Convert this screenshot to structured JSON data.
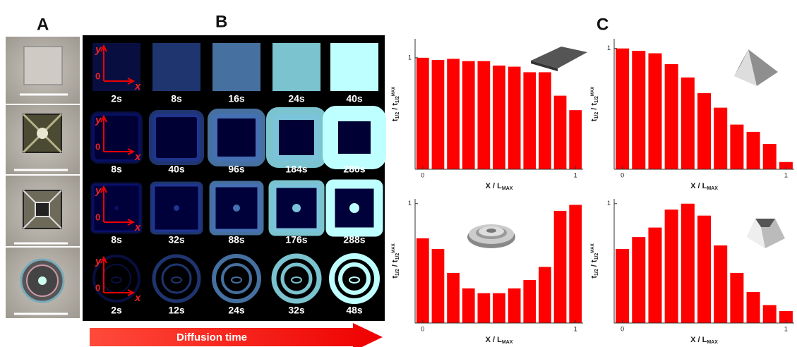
{
  "panel_labels": [
    "A",
    "B",
    "C"
  ],
  "diffusion_arrow": "Diffusion time",
  "axis_glyph": {
    "y": "y",
    "origin": "0",
    "x": "x"
  },
  "rows": [
    {
      "times": [
        "2s",
        "8s",
        "16s",
        "24s",
        "40s"
      ]
    },
    {
      "times": [
        "8s",
        "40s",
        "96s",
        "184s",
        "280s"
      ]
    },
    {
      "times": [
        "8s",
        "32s",
        "88s",
        "176s",
        "288s"
      ]
    },
    {
      "times": [
        "2s",
        "12s",
        "24s",
        "32s",
        "48s"
      ]
    }
  ],
  "chart_data": [
    {
      "type": "bar",
      "x": [
        0,
        0.1,
        0.2,
        0.3,
        0.4,
        0.5,
        0.6,
        0.7,
        0.8,
        0.9,
        1
      ],
      "values": [
        1.0,
        0.98,
        0.99,
        0.97,
        0.97,
        0.93,
        0.92,
        0.87,
        0.87,
        0.66,
        0.53
      ],
      "color": "#ff0000",
      "xlim": [
        -0.05,
        1.05
      ],
      "ylim": [
        0,
        1.17
      ],
      "xticks": [
        0,
        1
      ],
      "yticks": [
        1
      ],
      "x_label": [
        "X / L",
        "MAX"
      ],
      "y_label": [
        "t",
        "1/2",
        " / t",
        "1/2",
        "MAX"
      ]
    },
    {
      "type": "bar",
      "x": [
        0,
        0.1,
        0.2,
        0.3,
        0.4,
        0.5,
        0.6,
        0.7,
        0.8,
        0.9,
        1
      ],
      "values": [
        1.0,
        0.98,
        0.96,
        0.87,
        0.76,
        0.63,
        0.51,
        0.37,
        0.31,
        0.21,
        0.06
      ],
      "color": "#ff0000",
      "xlim": [
        -0.05,
        1.05
      ],
      "ylim": [
        0,
        1.08
      ],
      "xticks": [
        0,
        1
      ],
      "yticks": [
        1
      ],
      "x_label": [
        "X / L",
        "MAX"
      ],
      "y_label": [
        "t",
        "1/2",
        " / t",
        "1/2",
        "MAX"
      ]
    },
    {
      "type": "bar",
      "x": [
        0,
        0.1,
        0.2,
        0.3,
        0.4,
        0.5,
        0.6,
        0.7,
        0.8,
        0.9,
        1
      ],
      "values": [
        0.71,
        0.62,
        0.42,
        0.29,
        0.25,
        0.25,
        0.29,
        0.36,
        0.47,
        0.94,
        0.99
      ],
      "color": "#ff0000",
      "xlim": [
        -0.05,
        1.05
      ],
      "ylim": [
        0,
        1.04
      ],
      "xticks": [
        0,
        1
      ],
      "yticks": [
        1
      ],
      "x_label": [
        "X / L",
        "MAX"
      ],
      "y_label": [
        "t",
        "1/2",
        " / t",
        "1/2",
        "MAX"
      ]
    },
    {
      "type": "bar",
      "x": [
        0,
        0.1,
        0.2,
        0.3,
        0.4,
        0.5,
        0.6,
        0.7,
        0.8,
        0.9,
        1
      ],
      "values": [
        0.62,
        0.72,
        0.8,
        0.95,
        1.0,
        0.9,
        0.65,
        0.42,
        0.26,
        0.15,
        0.1
      ],
      "color": "#ff0000",
      "xlim": [
        -0.05,
        1.05
      ],
      "ylim": [
        0,
        1.04
      ],
      "xticks": [
        0,
        1
      ],
      "yticks": [
        1
      ],
      "x_label": [
        "X / L",
        "MAX"
      ],
      "y_label": [
        "t",
        "1/2",
        " / t",
        "1/2",
        "MAX"
      ]
    }
  ]
}
